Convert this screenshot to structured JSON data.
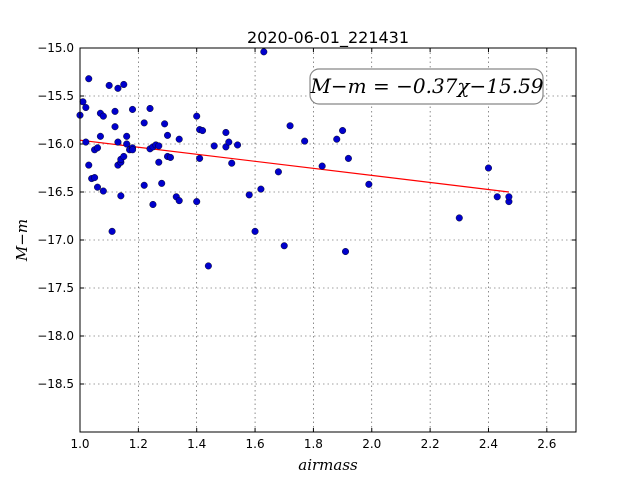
{
  "chart_data": {
    "type": "scatter",
    "title": "2020-06-01_221431",
    "xlabel": "airmass",
    "ylabel": "M−m",
    "xlim": [
      1.0,
      2.7
    ],
    "ylim": [
      -15.0,
      -19.0
    ],
    "y_inverted": true,
    "grid": true,
    "x_ticks": [
      1.0,
      1.2,
      1.4,
      1.6,
      1.8,
      2.0,
      2.2,
      2.4,
      2.6
    ],
    "x_tick_labels": [
      "1.0",
      "1.2",
      "1.4",
      "1.6",
      "1.8",
      "2.0",
      "2.2",
      "2.4",
      "2.6"
    ],
    "y_ticks": [
      -15.0,
      -15.5,
      -16.0,
      -16.5,
      -17.0,
      -17.5,
      -18.0,
      -18.5
    ],
    "y_tick_labels": [
      "−15.0",
      "−15.5",
      "−16.0",
      "−16.5",
      "−17.0",
      "−17.5",
      "−18.0",
      "−18.5"
    ],
    "annotation": "M−m = −0.37χ−15.59",
    "annotation_placement": "top-right",
    "colors": {
      "points": "#0000cc",
      "fit": "#ff0000"
    },
    "series": [
      {
        "kind": "points",
        "x": [
          1.0,
          1.01,
          1.02,
          1.02,
          1.03,
          1.03,
          1.04,
          1.05,
          1.05,
          1.06,
          1.06,
          1.07,
          1.07,
          1.08,
          1.08,
          1.1,
          1.11,
          1.12,
          1.12,
          1.13,
          1.13,
          1.13,
          1.14,
          1.14,
          1.14,
          1.15,
          1.15,
          1.16,
          1.16,
          1.17,
          1.18,
          1.18,
          1.18,
          1.22,
          1.22,
          1.24,
          1.24,
          1.25,
          1.25,
          1.26,
          1.27,
          1.27,
          1.28,
          1.29,
          1.3,
          1.3,
          1.31,
          1.33,
          1.34,
          1.34,
          1.4,
          1.4,
          1.41,
          1.41,
          1.42,
          1.44,
          1.46,
          1.5,
          1.5,
          1.51,
          1.52,
          1.54,
          1.58,
          1.6,
          1.62,
          1.63,
          1.68,
          1.7,
          1.72,
          1.77,
          1.83,
          1.88,
          1.9,
          1.91,
          1.92,
          1.99,
          2.3,
          2.4,
          2.43,
          2.47,
          2.47
        ],
        "y": [
          -15.7,
          -15.56,
          -15.62,
          -15.98,
          -15.32,
          -16.22,
          -16.36,
          -16.06,
          -16.35,
          -16.04,
          -16.45,
          -15.68,
          -15.92,
          -16.49,
          -15.71,
          -15.39,
          -16.91,
          -15.82,
          -15.66,
          -15.42,
          -15.98,
          -16.22,
          -16.19,
          -16.16,
          -16.54,
          -15.38,
          -16.13,
          -15.92,
          -16.0,
          -16.06,
          -15.64,
          -16.04,
          -16.06,
          -15.78,
          -16.43,
          -15.63,
          -16.05,
          -16.63,
          -16.03,
          -16.01,
          -16.02,
          -16.19,
          -16.41,
          -15.79,
          -16.13,
          -15.91,
          -16.14,
          -16.55,
          -15.95,
          -16.59,
          -15.71,
          -16.6,
          -15.85,
          -16.15,
          -15.86,
          -17.27,
          -16.02,
          -15.88,
          -16.03,
          -15.98,
          -16.2,
          -16.01,
          -16.53,
          -16.91,
          -16.47,
          -15.04,
          -16.29,
          -17.06,
          -15.81,
          -15.97,
          -16.23,
          -15.95,
          -15.86,
          -17.12,
          -16.15,
          -16.42,
          -16.77,
          -16.25,
          -16.55,
          -16.6,
          -16.55
        ]
      },
      {
        "kind": "fit-line",
        "x": [
          1.0,
          2.47
        ],
        "y": [
          -15.96,
          -16.5
        ]
      }
    ]
  }
}
